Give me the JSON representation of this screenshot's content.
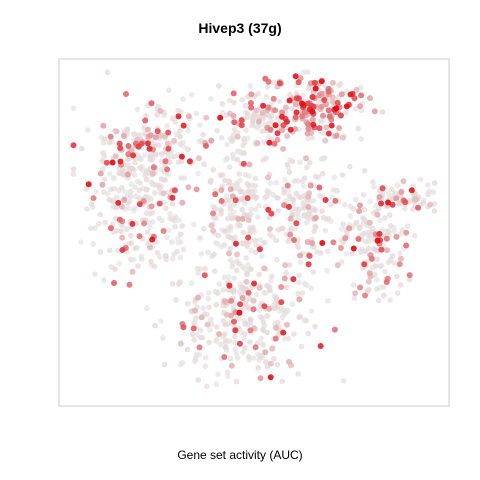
{
  "chart_data": {
    "type": "scatter",
    "title": "Hivep3 (37g)",
    "xlabel": "Gene set activity (AUC)",
    "ylabel": "",
    "xlim": [
      0,
      100
    ],
    "ylim": [
      0,
      100
    ],
    "grid": false,
    "legend": "none",
    "colors": {
      "low": "#e6e6e6",
      "high": "#e0000a",
      "frame": "#cccccc"
    },
    "point_groups": [
      {
        "name": "left-cluster",
        "cx": 20,
        "cy": 60,
        "sx": 9,
        "sy": 14,
        "n": 280,
        "level": 0.18,
        "seed": 11
      },
      {
        "name": "upper-left-cluster",
        "cx": 23,
        "cy": 76,
        "sx": 9,
        "sy": 6,
        "n": 130,
        "level": 0.32,
        "seed": 12
      },
      {
        "name": "top-center-cluster",
        "cx": 49,
        "cy": 82,
        "sx": 7,
        "sy": 6,
        "n": 90,
        "level": 0.3,
        "seed": 13
      },
      {
        "name": "top-right-cluster",
        "cx": 65,
        "cy": 86,
        "sx": 9,
        "sy": 6,
        "n": 220,
        "level": 0.6,
        "seed": 14
      },
      {
        "name": "center-column",
        "cx": 46,
        "cy": 55,
        "sx": 5,
        "sy": 12,
        "n": 170,
        "level": 0.12,
        "seed": 15
      },
      {
        "name": "center-right-cluster",
        "cx": 62,
        "cy": 55,
        "sx": 7,
        "sy": 11,
        "n": 170,
        "level": 0.18,
        "seed": 16
      },
      {
        "name": "right-cluster",
        "cx": 81,
        "cy": 47,
        "sx": 5,
        "sy": 11,
        "n": 160,
        "level": 0.2,
        "seed": 17
      },
      {
        "name": "far-right-arm",
        "cx": 90,
        "cy": 60,
        "sx": 5,
        "sy": 3,
        "n": 60,
        "level": 0.28,
        "seed": 18
      },
      {
        "name": "bottom-cluster",
        "cx": 47,
        "cy": 25,
        "sx": 11,
        "sy": 11,
        "n": 300,
        "level": 0.2,
        "seed": 19
      }
    ]
  }
}
